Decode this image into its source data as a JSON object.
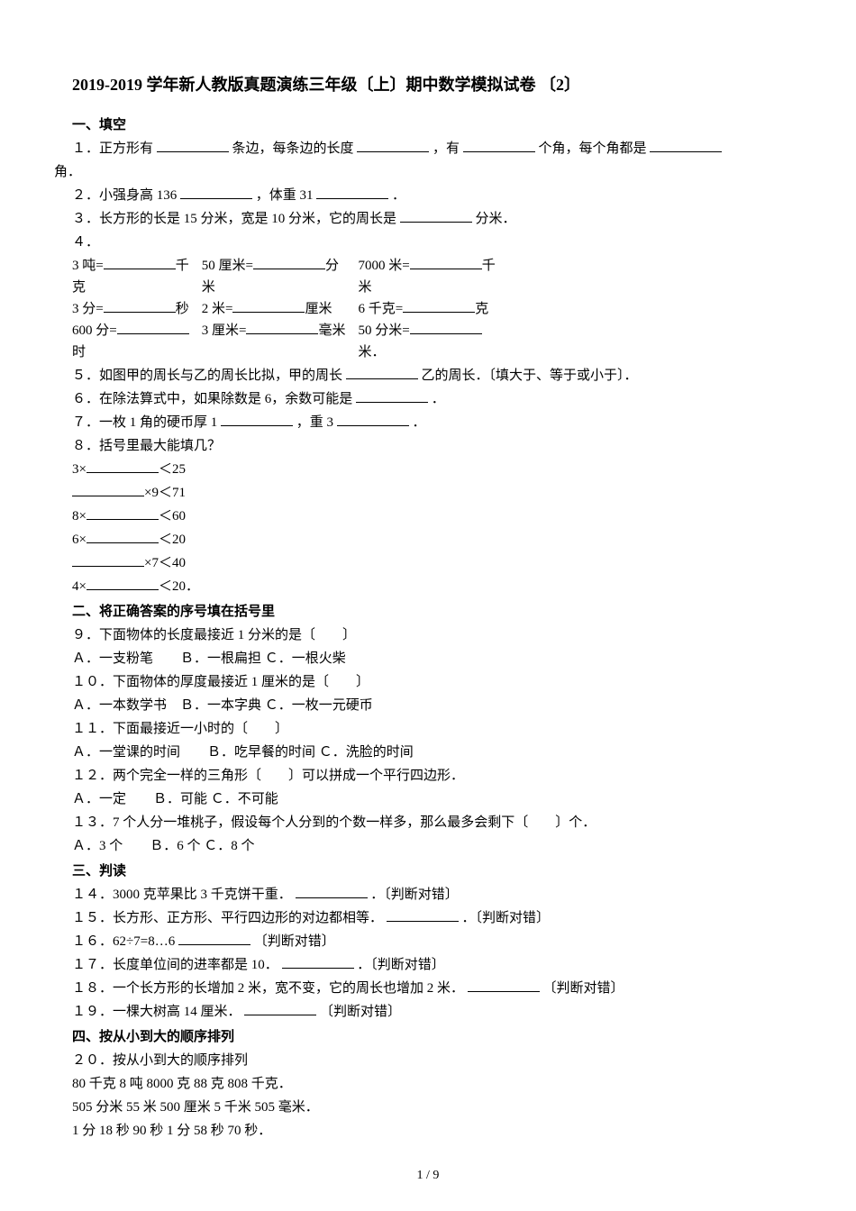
{
  "title": "2019-2019 学年新人教版真题演练三年级〔上〕期中数学模拟试卷 〔2〕",
  "sections": {
    "s1": "一、填空",
    "s2": "二、将正确答案的序号填在括号里",
    "s3": "三、判读",
    "s4": "四、按从小到大的顺序排列"
  },
  "q1": {
    "a": "１．正方形有",
    "b": "条边，每条边的长度",
    "c": "，有",
    "d": "个角，每个角都是",
    "e": "角．"
  },
  "q2": {
    "a": "２．小强身高 136",
    "b": "，体重 31",
    "c": "．"
  },
  "q3": {
    "a": "３．长方形的长是 15 分米，宽是 10 分米，它的周长是",
    "b": "分米．"
  },
  "q4": {
    "head": "４．",
    "r1c1a": "3 吨=",
    "r1c1b": "千",
    "r1c1c": "克",
    "r1c2a": "50 厘米=",
    "r1c2b": "分",
    "r1c2c": "米",
    "r1c3a": "7000 米=",
    "r1c3b": "千",
    "r1c3c": "米",
    "r2c1a": "3 分=",
    "r2c1b": "秒",
    "r2c2a": "2 米=",
    "r2c2b": "厘米",
    "r2c3a": "6 千克=",
    "r2c3b": "克",
    "r3c1a": "600 分=",
    "r3c1b": "时",
    "r3c2a": "3 厘米=",
    "r3c2b": "毫米",
    "r3c3a": "50 分米=",
    "r3c3b": "米．"
  },
  "q5": {
    "a": "５．如图甲的周长与乙的周长比拟，甲的周长",
    "b": "乙的周长．〔填大于、等于或小于〕．"
  },
  "q6": {
    "a": "６．在除法算式中，如果除数是 6，余数可能是",
    "b": "．"
  },
  "q7": {
    "a": "７．一枚 1 角的硬币厚 1",
    "b": "，重 3",
    "c": "．"
  },
  "q8": {
    "head": "８．括号里最大能填几？",
    "l1a": "3×",
    "l1b": "＜25",
    "l2a": "×9＜71",
    "l3a": "8×",
    "l3b": "＜60",
    "l4a": "6×",
    "l4b": "＜20",
    "l5a": "×7＜40",
    "l6a": "4×",
    "l6b": "＜20．"
  },
  "q9": {
    "q": "９．下面物体的长度最接近 1 分米的是〔　　〕",
    "opts": "Ａ．一支粉笔　　Ｂ．一根扁担 Ｃ．一根火柴"
  },
  "q10": {
    "q": "１０．下面物体的厚度最接近 1 厘米的是〔　　〕",
    "opts": "Ａ．一本数学书　Ｂ．一本字典 Ｃ．一枚一元硬币"
  },
  "q11": {
    "q": "１１．下面最接近一小时的〔　　〕",
    "opts": "Ａ．一堂课的时间　　Ｂ．吃早餐的时间 Ｃ．洗脸的时间"
  },
  "q12": {
    "q": "１２．两个完全一样的三角形〔　　〕可以拼成一个平行四边形．",
    "opts": "Ａ．一定　　Ｂ．可能 Ｃ．不可能"
  },
  "q13": {
    "q": "１３．7 个人分一堆桃子，假设每个人分到的个数一样多，那么最多会剩下〔　　〕个．",
    "opts": "Ａ．3 个　　Ｂ．6 个 Ｃ．8 个"
  },
  "q14": {
    "a": "１４．3000 克苹果比 3 千克饼干重．",
    "b": "．〔判断对错〕"
  },
  "q15": {
    "a": "１５．长方形、正方形、平行四边形的对边都相等．",
    "b": "．〔判断对错〕"
  },
  "q16": {
    "a": "１６．62÷7=8…6",
    "b": "〔判断对错〕"
  },
  "q17": {
    "a": "１７．长度单位间的进率都是 10．",
    "b": "．〔判断对错〕"
  },
  "q18": {
    "a": "１８．一个长方形的长增加 2 米，宽不变，它的周长也增加 2 米．",
    "b": "〔判断对错〕"
  },
  "q19": {
    "a": "１９．一棵大树高 14 厘米．",
    "b": "〔判断对错〕"
  },
  "q20": {
    "head": "２０．按从小到大的顺序排列",
    "l1": "80 千克  8 吨  8000 克  88 克  808 千克．",
    "l2": "505 分米 55 米 500 厘米 5 千米 505 毫米．",
    "l3": "1 分 18 秒 90 秒 1 分 58 秒 70 秒．"
  },
  "footer": "1 / 9"
}
